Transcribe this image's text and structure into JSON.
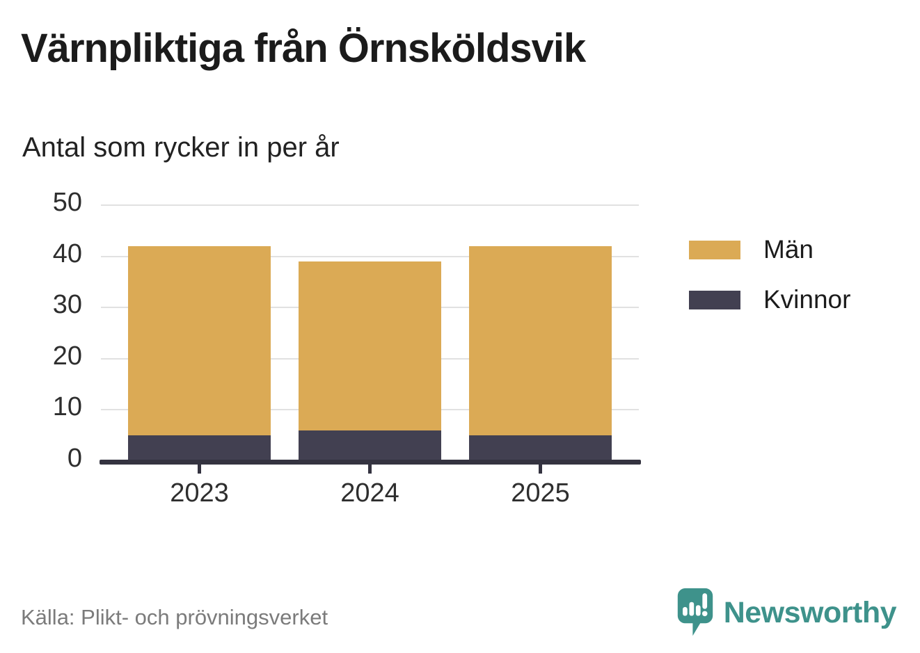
{
  "header": {
    "title": "Värnpliktiga från Örnsköldsvik",
    "subtitle": "Antal som rycker in per år"
  },
  "chart_data": {
    "type": "bar",
    "stacked": true,
    "title": "Värnpliktiga från Örnsköldsvik",
    "subtitle": "Antal som rycker in per år",
    "categories": [
      "2023",
      "2024",
      "2025"
    ],
    "series": [
      {
        "name": "Män",
        "color": "#DBAA55",
        "values": [
          37,
          33,
          37
        ]
      },
      {
        "name": "Kvinnor",
        "color": "#424051",
        "values": [
          5,
          6,
          5
        ]
      }
    ],
    "stack_totals": [
      42,
      39,
      42
    ],
    "xlabel": "",
    "ylabel": "",
    "ylim": [
      0,
      50
    ],
    "yticks": [
      0,
      10,
      20,
      30,
      40,
      50
    ],
    "grid": true,
    "legend_position": "right"
  },
  "footer": {
    "source": "Källa: Plikt- och prövningsverket",
    "brand": "Newsworthy"
  },
  "icons": {
    "brand_logo": "newsworthy-speech-bubble-bar-chart-icon"
  },
  "colors": {
    "men": "#DBAA55",
    "women": "#424051",
    "axis": "#343340",
    "gridline": "#E1E1E1",
    "title_text": "#1B1B1B",
    "tick_text": "#2E2E2E",
    "source_text": "#7B7B7B",
    "brand_teal": "#3E928B",
    "background": "#FFFFFF"
  }
}
